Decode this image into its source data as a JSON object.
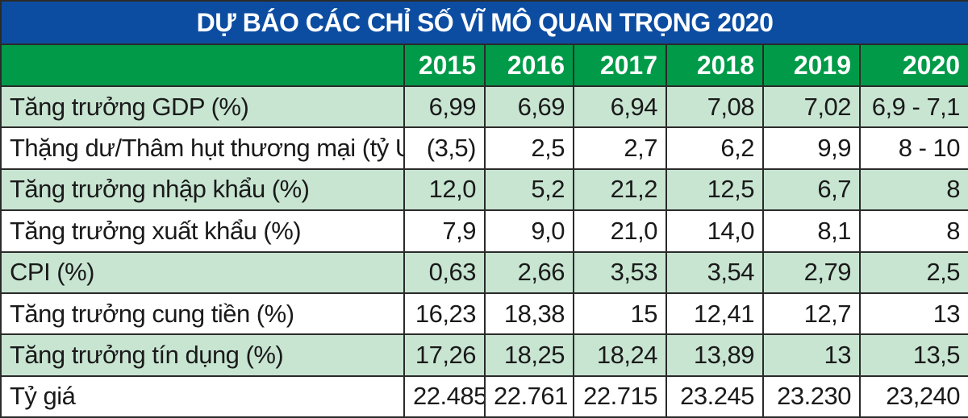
{
  "chart_data": {
    "type": "table",
    "title": "DỰ BÁO CÁC CHỈ SỐ VĨ MÔ QUAN TRỌNG 2020",
    "columns": [
      "2015",
      "2016",
      "2017",
      "2018",
      "2019",
      "2020"
    ],
    "rows": [
      {
        "label": "Tăng trưởng GDP (%)",
        "values": [
          "6,99",
          "6,69",
          "6,94",
          "7,08",
          "7,02",
          "6,9 - 7,1"
        ]
      },
      {
        "label": "Thặng dư/Thâm hụt thương mại (tỷ USD)",
        "values": [
          "(3,5)",
          "2,5",
          "2,7",
          "6,2",
          "9,9",
          "8 - 10"
        ]
      },
      {
        "label": "Tăng trưởng nhập khẩu (%)",
        "values": [
          "12,0",
          "5,2",
          "21,2",
          "12,5",
          "6,7",
          "8"
        ]
      },
      {
        "label": "Tăng trưởng xuất khẩu (%)",
        "values": [
          "7,9",
          "9,0",
          "21,0",
          "14,0",
          "8,1",
          "8"
        ]
      },
      {
        "label": "CPI (%)",
        "values": [
          "0,63",
          "2,66",
          "3,53",
          "3,54",
          "2,79",
          "2,5"
        ]
      },
      {
        "label": "Tăng trưởng cung tiền (%)",
        "values": [
          "16,23",
          "18,38",
          "15",
          "12,41",
          "12,7",
          "13"
        ]
      },
      {
        "label": "Tăng trưởng tín dụng (%)",
        "values": [
          "17,26",
          "18,25",
          "18,24",
          "13,89",
          "13",
          "13,5"
        ]
      },
      {
        "label": "Tỷ giá",
        "values": [
          "22.485",
          "22.761",
          "22.715",
          "23.245",
          "23.230",
          "23,240"
        ]
      }
    ],
    "colors": {
      "title_bg": "#0c4da2",
      "header_bg": "#009a48",
      "shaded_row": "#c8e5d2"
    }
  }
}
